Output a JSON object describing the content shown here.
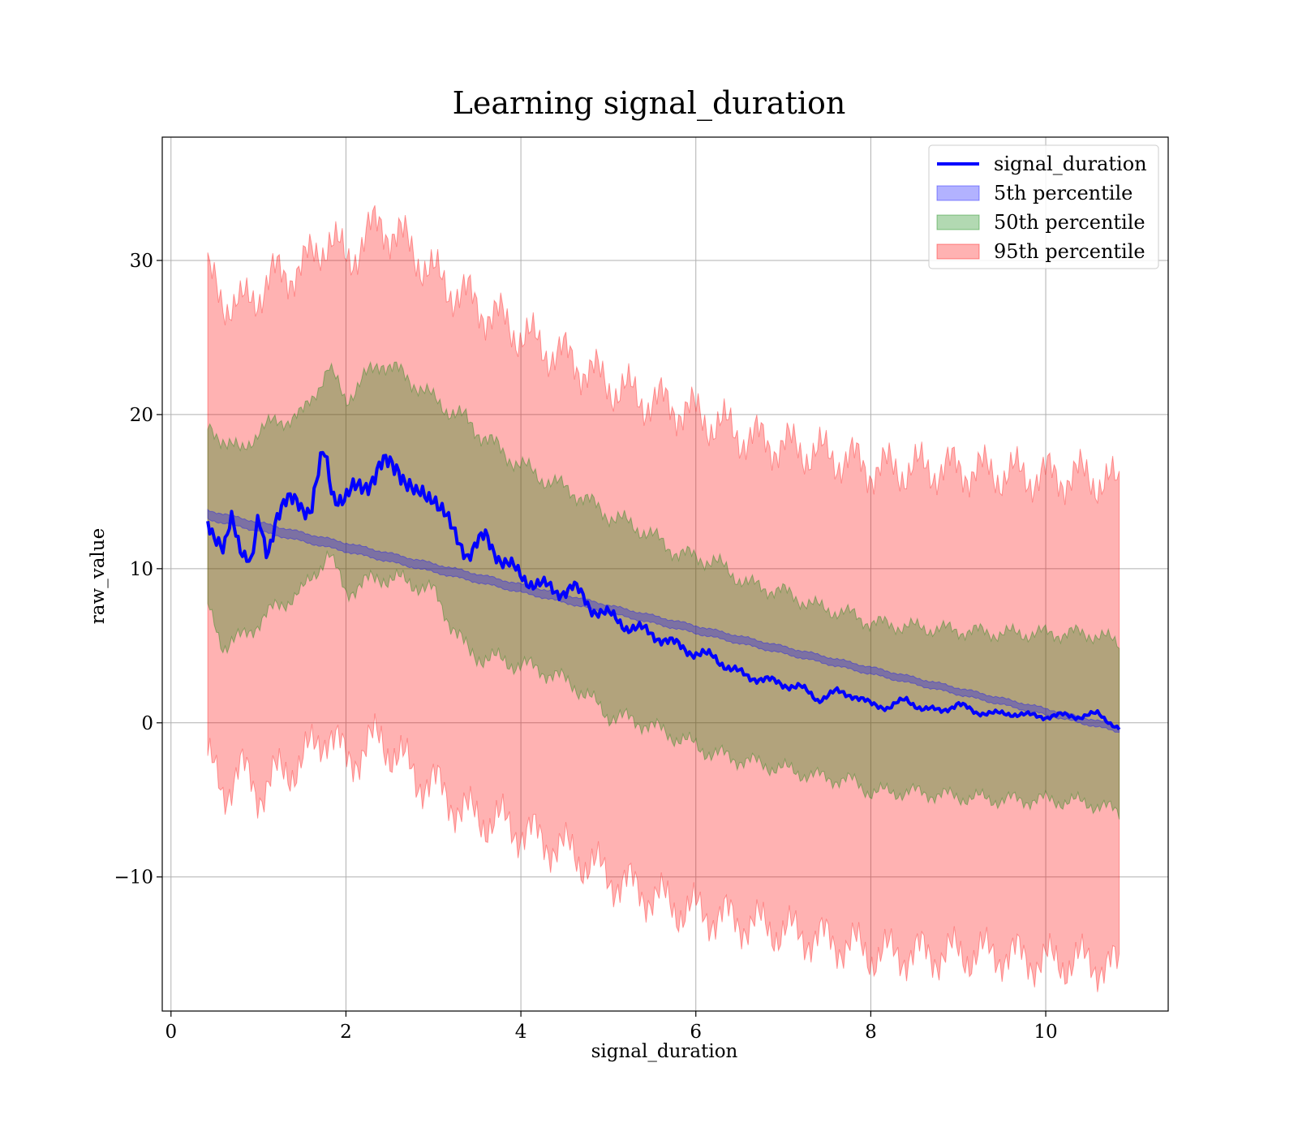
{
  "chart_data": {
    "type": "area",
    "title": "Learning signal_duration",
    "xlabel": "signal_duration",
    "ylabel": "raw_value",
    "xlim": [
      -0.1,
      11.4
    ],
    "ylim": [
      -18.7,
      38.0
    ],
    "xticks": [
      0,
      2,
      4,
      6,
      8,
      10
    ],
    "xtick_labels": [
      "0",
      "2",
      "4",
      "6",
      "8",
      "10"
    ],
    "yticks": [
      -10,
      0,
      10,
      20,
      30
    ],
    "ytick_labels": [
      "−10",
      "0",
      "10",
      "20",
      "30"
    ],
    "grid": true,
    "legend_position": "top-right",
    "series": [
      {
        "name": "signal_duration",
        "kind": "line",
        "color": "#0000ff",
        "x": [
          0.42,
          0.5,
          0.6,
          0.7,
          0.8,
          0.92,
          1.0,
          1.1,
          1.2,
          1.3,
          1.45,
          1.6,
          1.75,
          1.85,
          2.0,
          2.2,
          2.4,
          2.6,
          2.8,
          3.0,
          3.2,
          3.4,
          3.6,
          3.8,
          4.0,
          4.2,
          4.4,
          4.6,
          4.8,
          5.0,
          5.2,
          5.4,
          5.6,
          5.8,
          6.0,
          6.2,
          6.4,
          6.6,
          6.8,
          7.0,
          7.2,
          7.4,
          7.6,
          7.8,
          8.0,
          8.2,
          8.4,
          8.6,
          8.8,
          9.0,
          9.2,
          9.4,
          9.6,
          9.8,
          10.0,
          10.2,
          10.4,
          10.6,
          10.84
        ],
        "y": [
          13.5,
          12.0,
          10.8,
          13.5,
          11.5,
          10.2,
          13.0,
          11.0,
          13.5,
          14.0,
          14.5,
          13.8,
          17.5,
          15.0,
          14.5,
          15.5,
          16.5,
          16.8,
          14.5,
          15.0,
          12.5,
          11.0,
          12.0,
          10.5,
          9.5,
          9.0,
          8.5,
          8.8,
          7.5,
          7.0,
          6.3,
          6.0,
          5.5,
          5.0,
          4.5,
          4.3,
          3.5,
          3.0,
          2.8,
          2.5,
          2.3,
          1.5,
          2.0,
          1.8,
          1.2,
          1.0,
          1.5,
          0.9,
          0.8,
          1.2,
          0.7,
          0.6,
          0.6,
          0.5,
          0.4,
          0.5,
          0.4,
          0.6,
          -0.4
        ]
      },
      {
        "name": "5th percentile",
        "kind": "band",
        "color": "#0000ff",
        "opacity": 0.3,
        "x": [
          0.42,
          10.84
        ],
        "lower": [
          13.2,
          -0.6
        ],
        "upper": [
          13.8,
          -0.2
        ]
      },
      {
        "name": "50th percentile",
        "kind": "band",
        "color": "#008000",
        "opacity": 0.3,
        "x": [
          0.42,
          0.6,
          0.8,
          1.0,
          1.2,
          1.5,
          1.8,
          2.0,
          2.4,
          2.8,
          3.0,
          3.4,
          3.8,
          4.2,
          4.6,
          5.0,
          5.4,
          5.8,
          6.2,
          6.6,
          7.0,
          7.4,
          7.8,
          8.0,
          8.5,
          9.0,
          9.5,
          10.0,
          10.5,
          10.84
        ],
        "lower": [
          7.5,
          5.0,
          5.5,
          6.5,
          7.5,
          8.5,
          11.0,
          8.5,
          9.5,
          9.0,
          8.5,
          4.5,
          4.0,
          3.5,
          2.5,
          0.5,
          0.0,
          -1.0,
          -2.0,
          -2.5,
          -3.0,
          -3.5,
          -3.8,
          -4.5,
          -4.5,
          -4.8,
          -5.0,
          -5.0,
          -5.2,
          -5.8
        ],
        "upper": [
          19.0,
          18.5,
          17.5,
          19.0,
          19.5,
          20.0,
          23.0,
          21.0,
          23.5,
          22.0,
          21.0,
          19.5,
          17.5,
          16.0,
          15.0,
          13.5,
          12.5,
          11.0,
          10.5,
          9.0,
          8.5,
          7.5,
          7.0,
          6.5,
          6.2,
          6.0,
          5.8,
          5.8,
          5.8,
          5.2
        ]
      },
      {
        "name": "95th percentile",
        "kind": "band",
        "color": "#ff0000",
        "opacity": 0.3,
        "x": [
          0.42,
          0.6,
          0.8,
          1.0,
          1.2,
          1.5,
          1.8,
          2.0,
          2.4,
          2.8,
          3.0,
          3.4,
          3.8,
          4.2,
          4.6,
          5.0,
          5.4,
          5.8,
          6.2,
          6.6,
          7.0,
          7.4,
          7.8,
          8.0,
          8.5,
          9.0,
          9.5,
          10.0,
          10.5,
          10.84
        ],
        "lower": [
          -2.5,
          -4.5,
          -3.0,
          -4.5,
          -3.5,
          -2.5,
          -0.5,
          -2.5,
          -1.0,
          -3.5,
          -4.0,
          -6.0,
          -6.5,
          -7.5,
          -8.5,
          -10.0,
          -11.0,
          -12.0,
          -12.5,
          -13.0,
          -13.5,
          -14.0,
          -14.5,
          -15.0,
          -15.0,
          -15.0,
          -15.0,
          -15.5,
          -15.5,
          -16.0
        ],
        "upper": [
          29.0,
          27.5,
          27.0,
          28.0,
          29.0,
          29.5,
          31.5,
          30.0,
          32.5,
          30.5,
          29.0,
          27.5,
          26.0,
          24.5,
          23.5,
          22.0,
          21.0,
          20.5,
          19.5,
          18.5,
          18.0,
          17.5,
          17.0,
          16.5,
          16.5,
          16.5,
          16.2,
          16.0,
          16.0,
          15.3
        ]
      }
    ]
  }
}
